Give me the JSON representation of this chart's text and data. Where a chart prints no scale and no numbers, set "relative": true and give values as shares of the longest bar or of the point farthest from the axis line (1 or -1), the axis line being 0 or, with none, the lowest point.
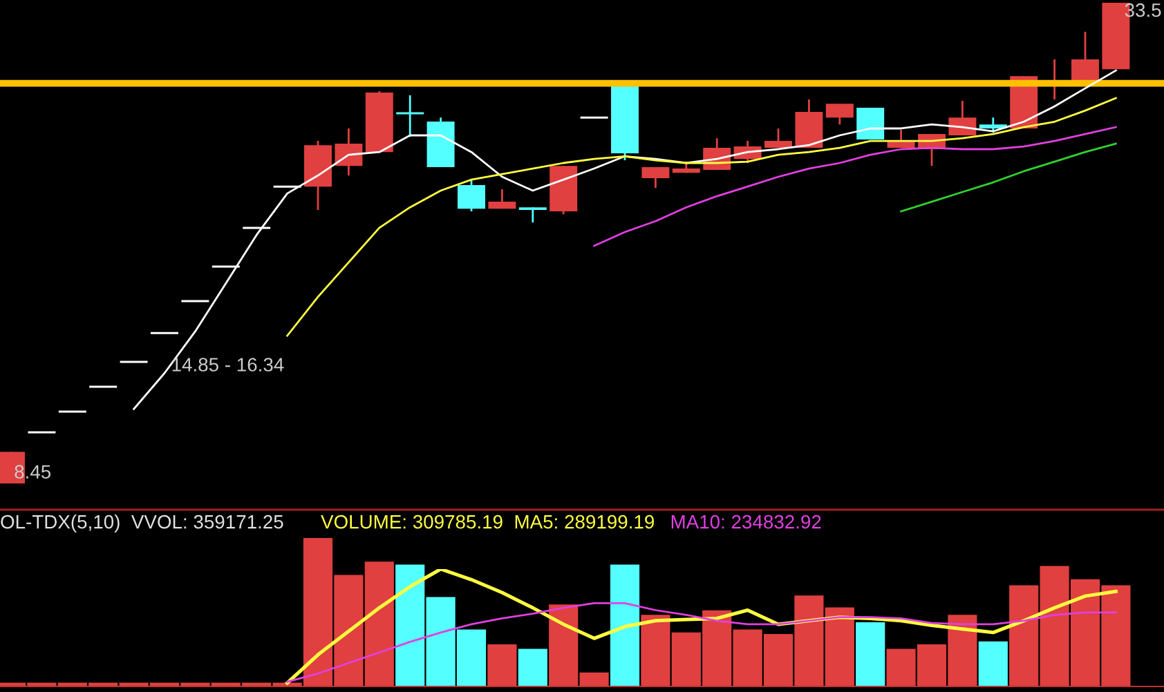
{
  "chart_data": [
    {
      "type": "candlestick",
      "categories": [
        null,
        null,
        null,
        null,
        null,
        null,
        null,
        null,
        null,
        null,
        null,
        null,
        null,
        null,
        null,
        null,
        null,
        null,
        null,
        null,
        null,
        null,
        null,
        null,
        null,
        null,
        null,
        null,
        null,
        null,
        null,
        null,
        null,
        null,
        null,
        null,
        null
      ],
      "ohlc": [
        [
          8.45,
          10.1,
          8.45,
          10.1
        ],
        [
          11.11,
          11.11,
          11.11,
          11.11
        ],
        [
          12.19,
          12.19,
          12.19,
          12.19
        ],
        [
          13.49,
          13.49,
          13.49,
          13.49
        ],
        [
          14.78,
          14.78,
          14.78,
          14.78
        ],
        [
          16.29,
          16.29,
          16.29,
          16.29
        ],
        [
          17.95,
          17.95,
          17.95,
          17.95
        ],
        [
          19.75,
          19.75,
          19.75,
          19.75
        ],
        [
          21.77,
          21.77,
          21.77,
          21.77
        ],
        [
          23.92,
          23.92,
          23.92,
          23.92
        ],
        [
          23.92,
          26.3,
          22.7,
          26.08
        ],
        [
          25.0,
          26.95,
          24.5,
          26.16
        ],
        [
          25.72,
          28.89,
          25.72,
          28.82
        ],
        [
          27.74,
          28.68,
          26.52,
          27.74
        ],
        [
          27.31,
          27.52,
          24.93,
          24.93
        ],
        [
          24.0,
          24.28,
          22.63,
          22.77
        ],
        [
          22.77,
          23.78,
          22.77,
          23.13
        ],
        [
          22.84,
          22.84,
          22.05,
          22.7
        ],
        [
          22.63,
          25.0,
          22.48,
          25.0
        ],
        [
          27.52,
          27.52,
          27.52,
          27.52
        ],
        [
          29.18,
          29.25,
          25.29,
          25.65
        ],
        [
          24.36,
          24.93,
          23.85,
          24.93
        ],
        [
          24.64,
          25.22,
          24.64,
          24.86
        ],
        [
          24.79,
          26.44,
          24.79,
          25.94
        ],
        [
          25.36,
          26.3,
          25.15,
          26.01
        ],
        [
          25.94,
          26.95,
          25.94,
          26.3
        ],
        [
          25.94,
          28.46,
          25.94,
          27.81
        ],
        [
          27.52,
          28.24,
          27.16,
          28.24
        ],
        [
          28.03,
          28.03,
          26.37,
          26.37
        ],
        [
          25.94,
          26.88,
          25.94,
          26.3
        ],
        [
          25.87,
          26.66,
          25.0,
          26.66
        ],
        [
          26.59,
          28.39,
          26.59,
          27.52
        ],
        [
          27.16,
          27.52,
          26.73,
          26.95
        ],
        [
          26.95,
          29.68,
          26.95,
          29.68
        ],
        [
          29.25,
          30.55,
          28.46,
          29.4
        ],
        [
          29.18,
          31.99,
          29.18,
          30.55
        ],
        [
          30.04,
          33.5,
          30.04,
          33.5
        ]
      ],
      "colors": [
        "#e04040",
        "#ffffff",
        "#ffffff",
        "#ffffff",
        "#ffffff",
        "#ffffff",
        "#ffffff",
        "#ffffff",
        "#ffffff",
        "#ffffff",
        "#e04040",
        "#e04040",
        "#e04040",
        "#54ffff",
        "#54ffff",
        "#54ffff",
        "#e04040",
        "#54ffff",
        "#e04040",
        "#ffffff",
        "#54ffff",
        "#e04040",
        "#e04040",
        "#e04040",
        "#e04040",
        "#e04040",
        "#e04040",
        "#e04040",
        "#54ffff",
        "#e04040",
        "#e04040",
        "#e04040",
        "#54ffff",
        "#e04040",
        "#e04040",
        "#e04040",
        "#e04040"
      ],
      "series": [
        {
          "type": "line",
          "color": "#ffffff",
          "values": [
            null,
            null,
            null,
            null,
            12.33,
            14.2,
            16.37,
            18.88,
            21.4,
            23.56,
            24.5,
            25.58,
            25.72,
            26.59,
            26.59,
            25.72,
            24.43,
            23.71,
            24.28,
            24.86,
            25.5,
            25.36,
            25.15,
            25.36,
            25.72,
            25.87,
            26.08,
            26.59,
            26.95,
            26.95,
            27.16,
            27.02,
            26.8,
            27.3,
            28.1,
            29.04,
            29.97
          ]
        },
        {
          "type": "line",
          "color": "#ffff40",
          "values": [
            null,
            null,
            null,
            null,
            null,
            null,
            null,
            null,
            null,
            16.15,
            18.17,
            19.97,
            21.77,
            22.84,
            23.71,
            24.28,
            24.57,
            24.86,
            25.15,
            25.36,
            25.5,
            25.29,
            25.15,
            25.15,
            25.22,
            25.58,
            25.72,
            25.94,
            26.3,
            26.3,
            26.3,
            26.44,
            26.66,
            27.02,
            27.3,
            27.88,
            28.53
          ]
        },
        {
          "type": "line",
          "color": "#e040e0",
          "values": [
            null,
            null,
            null,
            null,
            null,
            null,
            null,
            null,
            null,
            null,
            null,
            null,
            null,
            null,
            null,
            null,
            null,
            null,
            null,
            20.83,
            21.55,
            22.12,
            22.84,
            23.42,
            23.92,
            24.43,
            24.86,
            25.15,
            25.58,
            25.87,
            25.94,
            25.87,
            25.87,
            26.01,
            26.3,
            26.66,
            27.02
          ]
        },
        {
          "type": "line",
          "color": "#30d030",
          "values": [
            null,
            null,
            null,
            null,
            null,
            null,
            null,
            null,
            null,
            null,
            null,
            null,
            null,
            null,
            null,
            null,
            null,
            null,
            null,
            null,
            null,
            null,
            null,
            null,
            null,
            null,
            null,
            null,
            null,
            22.63,
            23.13,
            23.64,
            24.14,
            24.72,
            25.22,
            25.72,
            26.16
          ]
        }
      ],
      "ref_lines": [
        {
          "axis": "y",
          "value": 29.3,
          "color": "#ffc000"
        }
      ],
      "annotations": [
        "33.5",
        "8.45",
        "14.85 - 16.34"
      ]
    },
    {
      "type": "bar",
      "title": "OL-TDX(5,10)  VVOL: 359171.25",
      "relative": true,
      "categories": [
        null,
        null,
        null,
        null,
        null,
        null,
        null,
        null,
        null,
        null,
        null,
        null,
        null,
        null,
        null,
        null,
        null,
        null,
        null,
        null,
        null,
        null,
        null,
        null,
        null,
        null,
        null,
        null,
        null,
        null,
        null,
        null,
        null,
        null,
        null,
        null,
        null
      ],
      "values": [
        0.02,
        0.02,
        0.02,
        0.02,
        0.02,
        0.02,
        0.02,
        0.02,
        0.02,
        0.02,
        1.0,
        0.75,
        0.84,
        0.82,
        0.6,
        0.38,
        0.28,
        0.25,
        0.55,
        0.09,
        0.82,
        0.48,
        0.36,
        0.51,
        0.38,
        0.35,
        0.61,
        0.53,
        0.43,
        0.25,
        0.28,
        0.48,
        0.3,
        0.68,
        0.81,
        0.72,
        0.68
      ],
      "colors": [
        "#e04040",
        "#e04040",
        "#e04040",
        "#e04040",
        "#e04040",
        "#e04040",
        "#e04040",
        "#e04040",
        "#e04040",
        "#e04040",
        "#e04040",
        "#e04040",
        "#e04040",
        "#54ffff",
        "#54ffff",
        "#54ffff",
        "#e04040",
        "#54ffff",
        "#e04040",
        "#e04040",
        "#54ffff",
        "#e04040",
        "#e04040",
        "#e04040",
        "#e04040",
        "#e04040",
        "#e04040",
        "#e04040",
        "#54ffff",
        "#e04040",
        "#e04040",
        "#e04040",
        "#54ffff",
        "#e04040",
        "#e04040",
        "#e04040",
        "#e04040"
      ]
    },
    {
      "type": "line",
      "relative": true,
      "categories": [
        null,
        null,
        null,
        null,
        null,
        null,
        null,
        null,
        null,
        null,
        null,
        null,
        null,
        null,
        null,
        null,
        null,
        null,
        null,
        null,
        null,
        null,
        null,
        null,
        null,
        null,
        null,
        null,
        null,
        null,
        null,
        null,
        null,
        null,
        null,
        null,
        null
      ],
      "series": [
        {
          "name": "VOLUME: 309785.19  MA5: 289199.19",
          "color": "#ffff40",
          "values": [
            null,
            null,
            null,
            null,
            null,
            null,
            null,
            null,
            null,
            0.03,
            0.27,
            0.47,
            0.67,
            0.85,
            1,
            0.91,
            0.8,
            0.67,
            0.53,
            0.41,
            0.51,
            0.56,
            0.57,
            0.58,
            0.65,
            0.53,
            0.56,
            0.59,
            0.58,
            0.56,
            0.52,
            0.49,
            0.46,
            0.56,
            0.67,
            0.77,
            0.81
          ]
        },
        {
          "name": "MA10: 234832.92",
          "color": "#e040e0",
          "values": [
            null,
            null,
            null,
            null,
            null,
            null,
            null,
            null,
            null,
            0.04,
            0.11,
            0.2,
            0.29,
            0.38,
            0.46,
            0.53,
            0.58,
            0.62,
            0.67,
            0.71,
            0.71,
            0.65,
            0.61,
            0.56,
            0.53,
            0.53,
            0.56,
            0.59,
            0.59,
            0.58,
            0.54,
            0.53,
            0.53,
            0.56,
            0.61,
            0.63,
            0.63
          ]
        }
      ],
      "legend": "top left"
    }
  ]
}
